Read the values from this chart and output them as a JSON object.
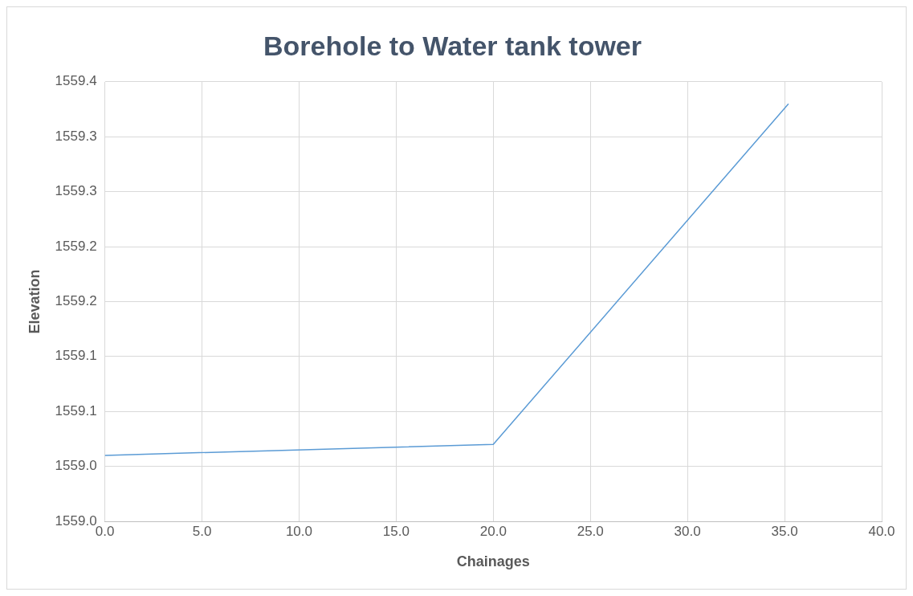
{
  "chart_data": {
    "type": "line",
    "title": "Borehole to Water tank tower",
    "xlabel": "Chainages",
    "ylabel": "Elevation",
    "x": [
      0,
      20,
      35.2
    ],
    "series": [
      {
        "color": "#5b9bd5",
        "values": [
          1559.06,
          1559.07,
          1559.38
        ]
      }
    ],
    "xlim": [
      0,
      40
    ],
    "xticks": [
      {
        "value": 0,
        "label": "0.0"
      },
      {
        "value": 5,
        "label": "5.0"
      },
      {
        "value": 10,
        "label": "10.0"
      },
      {
        "value": 15,
        "label": "15.0"
      },
      {
        "value": 20,
        "label": "20.0"
      },
      {
        "value": 25,
        "label": "25.0"
      },
      {
        "value": 30,
        "label": "30.0"
      },
      {
        "value": 35,
        "label": "35.0"
      },
      {
        "value": 40,
        "label": "40.0"
      }
    ],
    "ylim": [
      1559.0,
      1559.4
    ],
    "yticks": [
      {
        "value": 1559.0,
        "label": "1559.0"
      },
      {
        "value": 1559.05,
        "label": "1559.0"
      },
      {
        "value": 1559.1,
        "label": "1559.1"
      },
      {
        "value": 1559.15,
        "label": "1559.1"
      },
      {
        "value": 1559.2,
        "label": "1559.2"
      },
      {
        "value": 1559.25,
        "label": "1559.2"
      },
      {
        "value": 1559.3,
        "label": "1559.3"
      },
      {
        "value": 1559.35,
        "label": "1559.3"
      },
      {
        "value": 1559.4,
        "label": "1559.4"
      }
    ],
    "grid": true,
    "marker": "none",
    "line_style": "solid",
    "legend": false
  }
}
